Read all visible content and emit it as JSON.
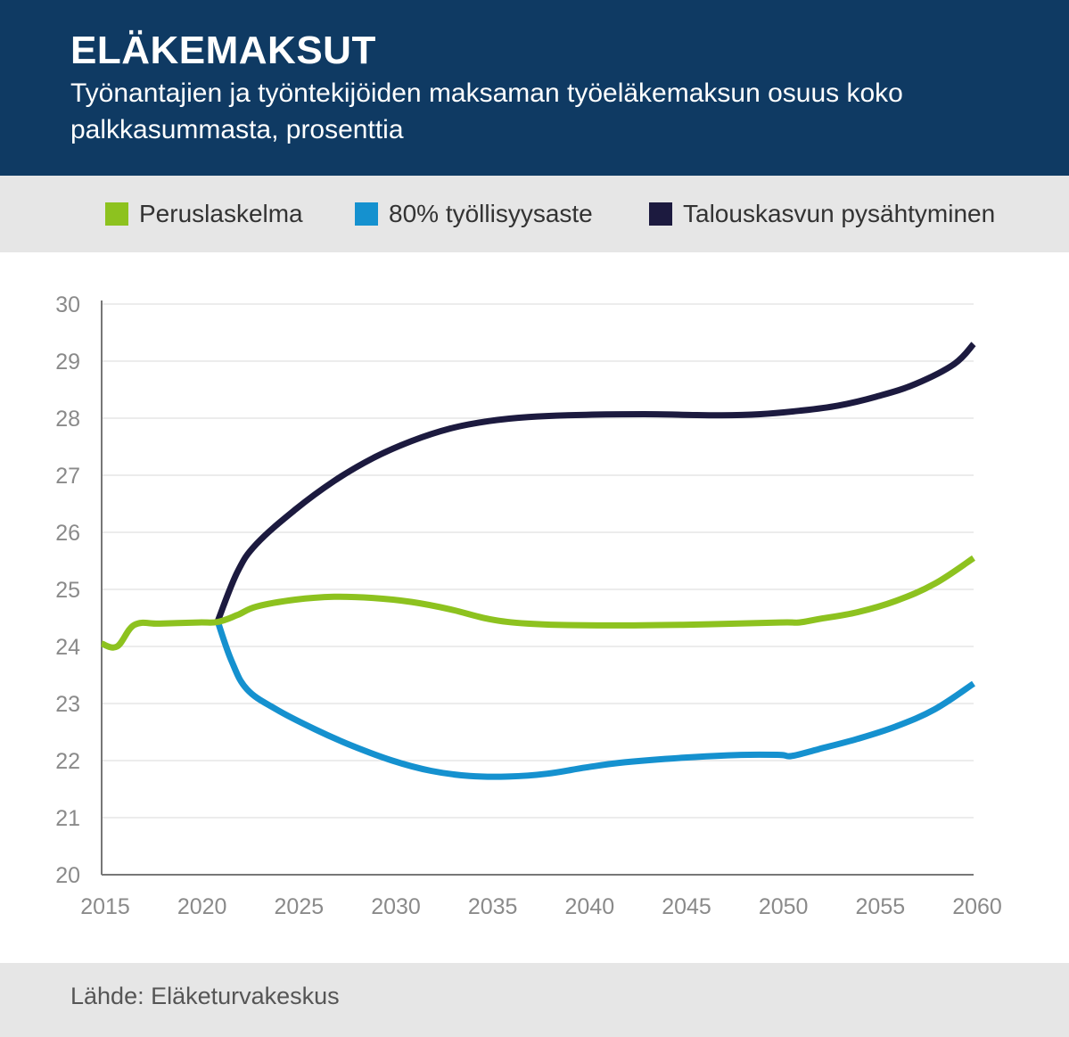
{
  "header": {
    "title": "ELÄKEMAKSUT",
    "subtitle": "Työnantajien ja työntekijöiden maksaman työeläkemaksun osuus koko palkkasummasta, prosenttia"
  },
  "footer": {
    "source": "Lähde: Eläketurvakeskus"
  },
  "colors": {
    "header_bg": "#0f3a63",
    "green": "#8dc21f",
    "blue": "#1591cf",
    "navy": "#1c1a3f",
    "grid": "#d9d9d9"
  },
  "chart_data": {
    "type": "line",
    "ylim": [
      20,
      30
    ],
    "xlim": [
      2015,
      2060
    ],
    "yticks": [
      "20",
      "21",
      "22",
      "23",
      "24",
      "25",
      "26",
      "27",
      "28",
      "29",
      "30"
    ],
    "xticks": [
      "2015",
      "2020",
      "2025",
      "2030",
      "2035",
      "2040",
      "2045",
      "2050",
      "2055",
      "2060"
    ],
    "grid": true,
    "legend_position": "top",
    "series": [
      {
        "name": "Peruslaskelma",
        "color": "#8dc21f",
        "points": [
          [
            2015,
            24.05
          ],
          [
            2015.8,
            24.0
          ],
          [
            2016.7,
            24.38
          ],
          [
            2018,
            24.4
          ],
          [
            2020,
            24.42
          ],
          [
            2021,
            24.43
          ],
          [
            2022,
            24.55
          ],
          [
            2023,
            24.7
          ],
          [
            2025,
            24.82
          ],
          [
            2027,
            24.87
          ],
          [
            2029,
            24.85
          ],
          [
            2031,
            24.78
          ],
          [
            2033,
            24.65
          ],
          [
            2035,
            24.48
          ],
          [
            2037,
            24.4
          ],
          [
            2040,
            24.37
          ],
          [
            2045,
            24.38
          ],
          [
            2050,
            24.42
          ],
          [
            2051,
            24.42
          ],
          [
            2052,
            24.48
          ],
          [
            2054,
            24.6
          ],
          [
            2056,
            24.8
          ],
          [
            2058,
            25.1
          ],
          [
            2060,
            25.55
          ]
        ]
      },
      {
        "name": "80% työllisyysaste",
        "color": "#1591cf",
        "points": [
          [
            2021,
            24.43
          ],
          [
            2021.7,
            23.75
          ],
          [
            2022.5,
            23.25
          ],
          [
            2024,
            22.9
          ],
          [
            2026,
            22.55
          ],
          [
            2028,
            22.25
          ],
          [
            2030,
            22.0
          ],
          [
            2032,
            21.82
          ],
          [
            2034,
            21.73
          ],
          [
            2036,
            21.72
          ],
          [
            2038,
            21.77
          ],
          [
            2040,
            21.88
          ],
          [
            2042,
            21.97
          ],
          [
            2045,
            22.05
          ],
          [
            2048,
            22.1
          ],
          [
            2050,
            22.1
          ],
          [
            2050.6,
            22.08
          ],
          [
            2052,
            22.2
          ],
          [
            2054,
            22.38
          ],
          [
            2056,
            22.6
          ],
          [
            2058,
            22.9
          ],
          [
            2060,
            23.35
          ]
        ]
      },
      {
        "name": "Talouskasvun pysähtyminen",
        "color": "#1c1a3f",
        "points": [
          [
            2021,
            24.45
          ],
          [
            2022,
            25.3
          ],
          [
            2023,
            25.8
          ],
          [
            2025,
            26.4
          ],
          [
            2027,
            26.9
          ],
          [
            2029,
            27.3
          ],
          [
            2031,
            27.6
          ],
          [
            2033,
            27.82
          ],
          [
            2035,
            27.95
          ],
          [
            2037,
            28.02
          ],
          [
            2040,
            28.06
          ],
          [
            2043,
            28.07
          ],
          [
            2045,
            28.06
          ],
          [
            2047,
            28.05
          ],
          [
            2049,
            28.07
          ],
          [
            2051,
            28.13
          ],
          [
            2053,
            28.22
          ],
          [
            2055,
            28.38
          ],
          [
            2057,
            28.6
          ],
          [
            2059,
            28.95
          ],
          [
            2060,
            29.3
          ]
        ]
      }
    ]
  }
}
